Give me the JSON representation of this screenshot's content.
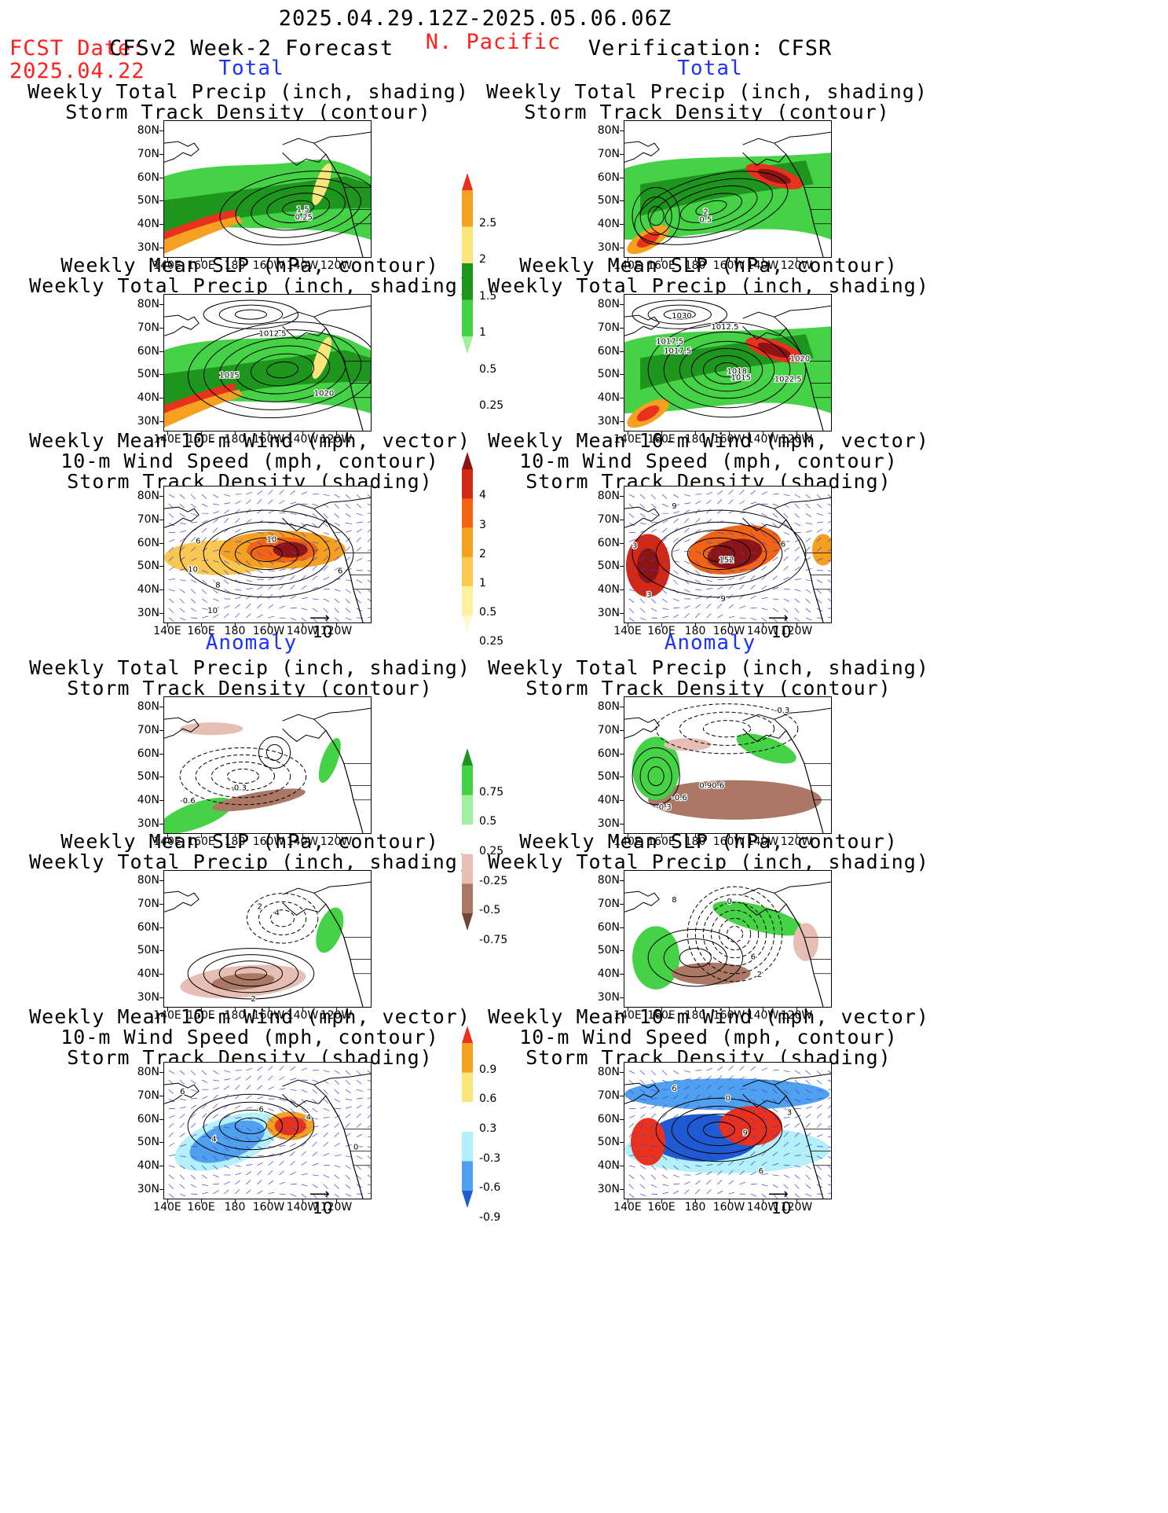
{
  "header": {
    "period": "2025.04.29.12Z-2025.05.06.06Z",
    "fcst_label": "FCST Date:",
    "fcst_date": "2025.04.22",
    "model": "CFSv2 Week-2 Forecast",
    "region": "N. Pacific",
    "verification": "Verification: CFSR"
  },
  "sections": {
    "total": "Total",
    "anomaly": "Anomaly"
  },
  "panel_titles": {
    "precip_storm": [
      "Weekly Total Precip (inch, shading)",
      "Storm Track Density (contour)"
    ],
    "slp_precip": [
      "Weekly Mean SLP (hPa, contour)",
      "Weekly Total Precip (inch, shading)"
    ],
    "wind_storm": [
      "Weekly Mean 10-m Wind (mph, vector)",
      "10-m Wind Speed (mph, contour)",
      "Storm Track Density (shading)"
    ]
  },
  "axes": {
    "lat_labels": [
      "80N",
      "70N",
      "60N",
      "50N",
      "40N",
      "30N"
    ],
    "lon_labels": [
      "140E",
      "160E",
      "180",
      "160W",
      "140W",
      "120W"
    ]
  },
  "vector_scale": "10",
  "colorbars": {
    "total_precip": {
      "labels": [
        "2.5",
        "2",
        "1.5",
        "1",
        "0.5",
        "0.25"
      ],
      "colors": [
        "#e8321e",
        "#f5a020",
        "#fae67a",
        "#1e961e",
        "#46d246",
        "#a0f0a0"
      ]
    },
    "total_storm": {
      "labels": [
        "4",
        "3",
        "2",
        "1",
        "0.5",
        "0.25"
      ],
      "colors": [
        "#8c1414",
        "#d22814",
        "#f06414",
        "#f5a020",
        "#fac850",
        "#fff0a0",
        "#fffad2"
      ]
    },
    "anom_precip": {
      "labels": [
        "0.75",
        "0.5",
        "0.25",
        "-0.25",
        "-0.5",
        "-0.75"
      ],
      "colors": [
        "#1e961e",
        "#46d246",
        "#a0f0a0",
        "#ffffff",
        "#e6beb4",
        "#aa7864",
        "#6e4632"
      ]
    },
    "anom_storm": {
      "labels": [
        "0.9",
        "0.6",
        "0.3",
        "-0.3",
        "-0.6",
        "-0.9"
      ],
      "colors": [
        "#e8321e",
        "#f5a020",
        "#fae67a",
        "#ffffff",
        "#b4f0fa",
        "#50a0f0",
        "#1e5ad2"
      ]
    }
  },
  "panel_labels": {
    "f1": [
      "1.5",
      "0.25"
    ],
    "v1": [
      "2",
      "0.5"
    ],
    "f2": [
      "1012.5",
      "1015",
      "1020"
    ],
    "v2": [
      "1030",
      "1012.5",
      "1017.5",
      "1017.5",
      "1020",
      "1018",
      "1015",
      "1022.5"
    ],
    "f3": [
      "6",
      "10",
      "8",
      "10",
      "10",
      "6"
    ],
    "v3": [
      "9",
      "3",
      "152",
      "6",
      "3",
      "9"
    ],
    "f4": [
      "-0.3",
      "-0.6"
    ],
    "v4": [
      "-0.3",
      "0.90.6",
      "-0.6",
      "-0.3"
    ],
    "f5": [
      "2",
      "4",
      "2"
    ],
    "v5": [
      "8",
      "0",
      "6",
      "2"
    ],
    "f6": [
      "6",
      "6",
      "4",
      "4",
      "0"
    ],
    "v6": [
      "6",
      "0",
      "3",
      "9",
      "6"
    ]
  }
}
